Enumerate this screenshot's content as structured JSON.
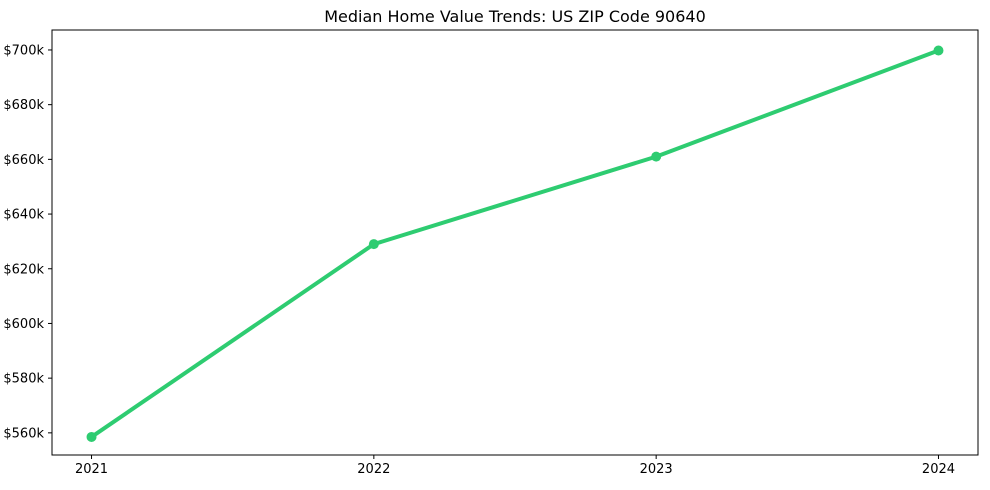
{
  "page": {
    "title": "Median Home Value Trends: US ZIP Code 90640"
  },
  "chart_data": {
    "type": "line",
    "title": "Median Home Value Trends: US ZIP Code 90640",
    "xlabel": "",
    "ylabel": "",
    "x": [
      2021,
      2022,
      2023,
      2024
    ],
    "series": [
      {
        "name": "Median Home Value",
        "values": [
          558500,
          629000,
          661000,
          699800
        ]
      }
    ],
    "x_tick_labels": [
      "2021",
      "2022",
      "2023",
      "2024"
    ],
    "y_ticks": [
      560000,
      580000,
      600000,
      620000,
      640000,
      660000,
      680000,
      700000
    ],
    "y_tick_labels": [
      "$560k",
      "$580k",
      "$600k",
      "$620k",
      "$640k",
      "$660k",
      "$680k",
      "$700k"
    ],
    "xlim": [
      2020.86,
      2024.14
    ],
    "ylim": [
      551900,
      707300
    ],
    "grid": false,
    "legend": null,
    "line_color": "#2ecc71",
    "marker": "circle",
    "spine_color": "#000000"
  }
}
